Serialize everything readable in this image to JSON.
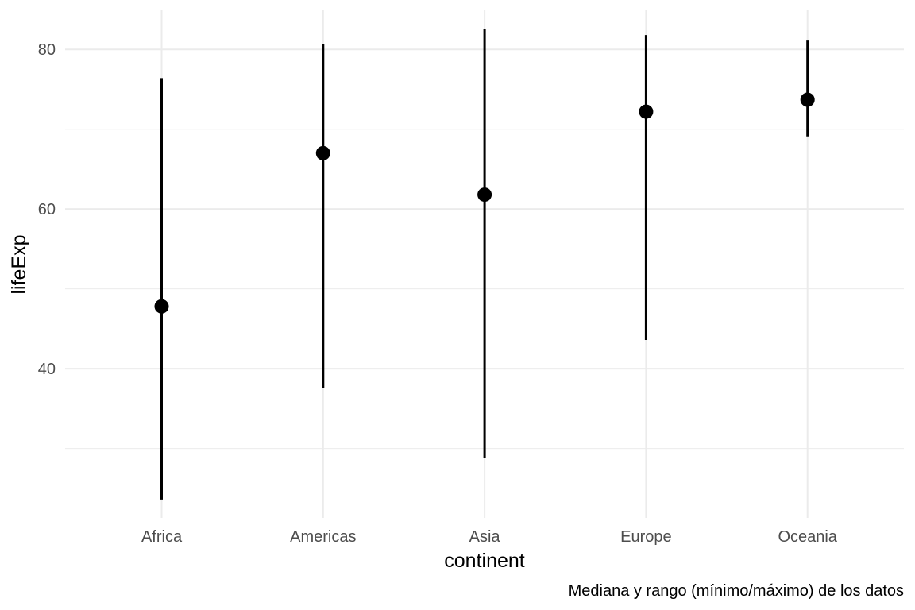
{
  "chart_data": {
    "type": "pointrange",
    "categories": [
      "Africa",
      "Americas",
      "Asia",
      "Europe",
      "Oceania"
    ],
    "median": [
      47.8,
      67.0,
      61.8,
      72.2,
      73.7
    ],
    "min": [
      23.6,
      37.6,
      28.8,
      43.6,
      69.1
    ],
    "max": [
      76.4,
      80.7,
      82.6,
      81.8,
      81.2
    ],
    "xlabel": "continent",
    "ylabel": "lifeExp",
    "caption": "Mediana y rango (mínimo/máximo) de los datos",
    "ylim": [
      21.3,
      85.0
    ],
    "yticks": [
      40,
      60,
      80
    ],
    "yminor": [
      30,
      50,
      70
    ],
    "grid": true,
    "colors": {
      "marks": "#000000",
      "grid": "#ebebeb",
      "tick_text": "#4d4d4d",
      "background": "#ffffff"
    }
  }
}
